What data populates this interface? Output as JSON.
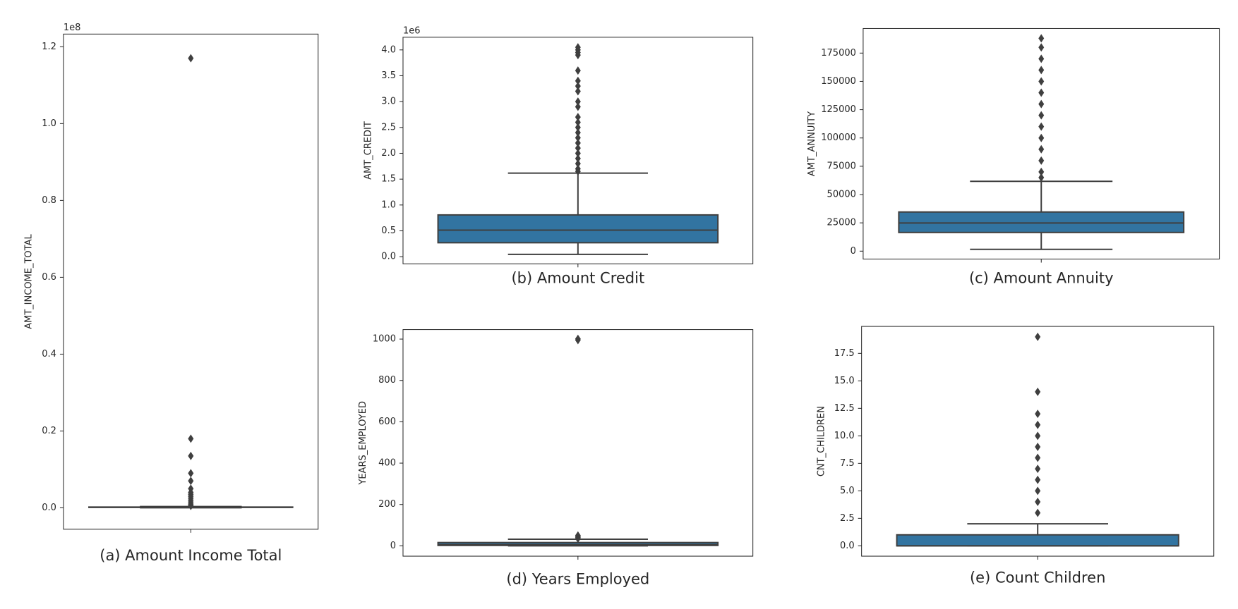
{
  "chart_data": [
    {
      "type": "box",
      "caption": "(a) Amount Income Total",
      "ylabel": "AMT_INCOME_TOTAL",
      "offset": "1e8",
      "color": "#3274a1",
      "ylim": [
        -0.0557,
        1.233
      ],
      "yticks": [
        {
          "value": 0,
          "label": "0.0"
        },
        0.2,
        0.4,
        0.6,
        0.8,
        {
          "value": 1,
          "label": "1.0"
        },
        1.2
      ],
      "box": {
        "whislo": 0.00026,
        "q1": 0.001125,
        "med": 0.0014715,
        "q3": 0.002025,
        "whishi": 0.003375
      },
      "fliers": [
        1.17,
        0.18,
        0.135,
        0.09,
        0.07,
        0.05,
        0.04,
        0.035,
        0.03,
        0.025,
        0.02,
        0.015,
        0.01,
        0.007,
        0.005
      ]
    },
    {
      "type": "box",
      "caption": "(b) Amount Credit",
      "ylabel": "AMT_CREDIT",
      "offset": "1e6",
      "color": "#3274a1",
      "ylim": [
        -0.138,
        4.245
      ],
      "yticks": [
        {
          "value": 0,
          "label": "0.0"
        },
        0.5,
        {
          "value": 1,
          "label": "1.0"
        },
        1.5,
        {
          "value": 2,
          "label": "2.0"
        },
        2.5,
        {
          "value": 3,
          "label": "3.0"
        },
        3.5,
        {
          "value": 4,
          "label": "4.0"
        }
      ],
      "box": {
        "whislo": 0.045,
        "q1": 0.27,
        "med": 0.513,
        "q3": 0.808,
        "whishi": 1.616
      },
      "fliers": [
        4.05,
        4.0,
        3.95,
        3.9,
        3.6,
        3.4,
        3.3,
        3.2,
        3.0,
        2.9,
        2.7,
        2.6,
        2.5,
        2.4,
        2.3,
        2.2,
        2.1,
        2.0,
        1.9,
        1.8,
        1.7,
        1.65
      ]
    },
    {
      "type": "box",
      "caption": "(c) Amount Annuity",
      "ylabel": "AMT_ANNUITY",
      "color": "#3274a1",
      "ylim": [
        -7000,
        196700
      ],
      "yticks": [
        0,
        25000,
        50000,
        75000,
        100000,
        125000,
        150000,
        175000
      ],
      "box": {
        "whislo": 1600,
        "q1": 16500,
        "med": 24900,
        "q3": 34600,
        "whishi": 61700
      },
      "fliers": [
        188000,
        180000,
        170000,
        160000,
        150000,
        140000,
        130000,
        120000,
        110000,
        100000,
        90000,
        80000,
        70000,
        65000
      ]
    },
    {
      "type": "box",
      "caption": "(d) Years Employed",
      "ylabel": "YEARS_EMPLOYED",
      "color": "#3274a1",
      "ylim": [
        -50,
        1046
      ],
      "yticks": [
        0,
        200,
        400,
        600,
        800,
        1000
      ],
      "box": {
        "whislo": 0,
        "q1": 2,
        "med": 6,
        "q3": 16,
        "whishi": 32
      },
      "fliers": [
        1001,
        995,
        50,
        45,
        40,
        35
      ]
    },
    {
      "type": "box",
      "caption": "(e) Count Children",
      "ylabel": "CNT_CHILDREN",
      "color": "#3274a1",
      "ylim": [
        -0.94,
        19.95
      ],
      "yticks": [
        {
          "value": 0,
          "label": "0.0"
        },
        2.5,
        {
          "value": 5,
          "label": "5.0"
        },
        7.5,
        {
          "value": 10,
          "label": "10.0"
        },
        12.5,
        {
          "value": 15,
          "label": "15.0"
        },
        17.5
      ],
      "box": {
        "whislo": 0,
        "q1": 0,
        "med": 0,
        "q3": 1,
        "whishi": 2
      },
      "fliers": [
        19,
        14,
        12,
        11,
        10,
        9,
        8,
        7,
        6,
        5,
        4,
        3
      ]
    }
  ]
}
